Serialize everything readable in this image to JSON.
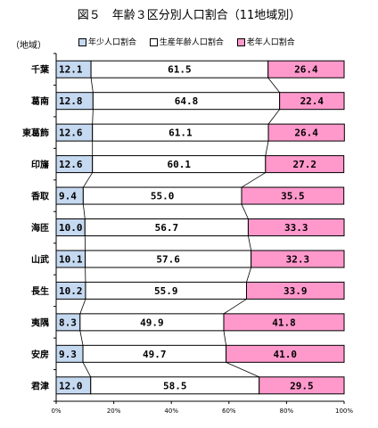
{
  "chart_data": {
    "type": "bar",
    "orientation": "horizontal-stacked-100",
    "title": "図５　年齢３区分別人口割合（11地域別）",
    "region_caption": "（地域）",
    "categories": [
      "千葉",
      "葛南",
      "東葛飾",
      "印旛",
      "香取",
      "海匝",
      "山武",
      "長生",
      "夷隅",
      "安房",
      "君津"
    ],
    "series": [
      {
        "name": "年少人口割合",
        "color": "#c5d9f1",
        "values": [
          12.1,
          12.8,
          12.6,
          12.6,
          9.4,
          10.0,
          10.1,
          10.2,
          8.3,
          9.3,
          12.0
        ]
      },
      {
        "name": "生産年齢人口割合",
        "color": "#ffffff",
        "values": [
          61.5,
          64.8,
          61.1,
          60.1,
          55.0,
          56.7,
          57.6,
          55.9,
          49.9,
          49.7,
          58.5
        ]
      },
      {
        "name": "老年人口割合",
        "color": "#ff99cc",
        "values": [
          26.4,
          22.4,
          26.4,
          27.2,
          35.5,
          33.3,
          32.3,
          33.9,
          41.8,
          41.0,
          29.5
        ]
      }
    ],
    "xlim": [
      0,
      100
    ],
    "xticks": [
      "0%",
      "20%",
      "40%",
      "60%",
      "80%",
      "100%"
    ],
    "legend_position": "top",
    "grid": false
  }
}
